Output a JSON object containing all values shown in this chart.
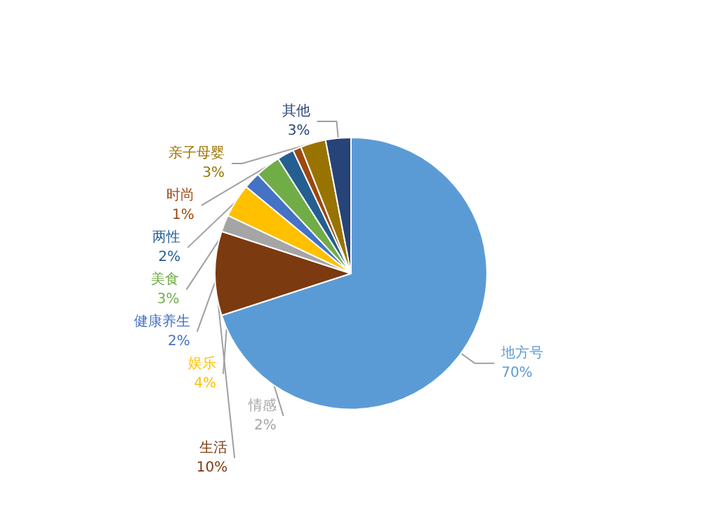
{
  "chart_data": {
    "type": "pie",
    "categories": [
      "地方号",
      "生活",
      "情感",
      "娱乐",
      "健康养生",
      "美食",
      "两性",
      "时尚",
      "亲子母婴",
      "其他"
    ],
    "values": [
      70,
      10,
      2,
      4,
      2,
      3,
      2,
      1,
      3,
      3
    ],
    "value_labels": [
      "70%",
      "10%",
      "2%",
      "4%",
      "2%",
      "3%",
      "2%",
      "1%",
      "3%",
      "3%"
    ],
    "colors": [
      "#5b9bd5",
      "#7b3a10",
      "#a5a5a5",
      "#ffc000",
      "#4472c4",
      "#70ad47",
      "#255e91",
      "#9e480e",
      "#997300",
      "#264478"
    ],
    "legend": false
  }
}
